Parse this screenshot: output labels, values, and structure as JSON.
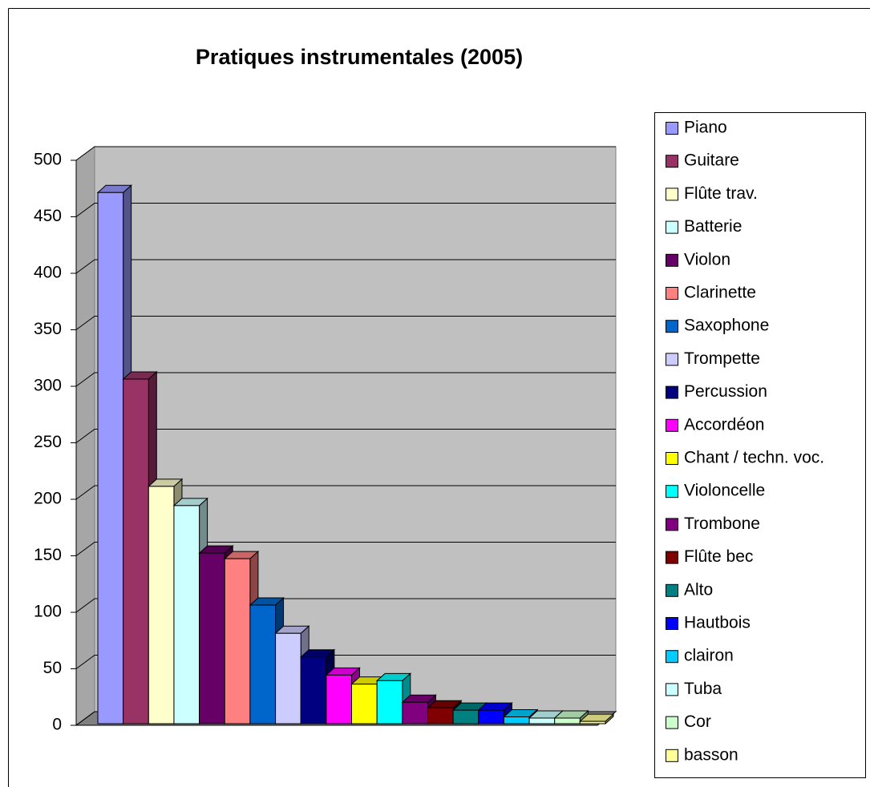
{
  "chart_data": {
    "type": "bar3d",
    "title": "Pratiques instrumentales (2005)",
    "categories": [
      "Piano",
      "Guitare",
      "Flûte trav.",
      "Batterie",
      "Violon",
      "Clarinette",
      "Saxophone",
      "Trompette",
      "Percussion",
      "Accordéon",
      "Chant / techn. voc.",
      "Violoncelle",
      "Trombone",
      "Flûte bec",
      "Alto",
      "Hautbois",
      "clairon",
      "Tuba",
      "Cor",
      "basson"
    ],
    "values": [
      470,
      305,
      210,
      193,
      151,
      146,
      105,
      80,
      59,
      43,
      35,
      38,
      19,
      14,
      12,
      12,
      6,
      5,
      5,
      2
    ],
    "colors": [
      "#9999ff",
      "#993366",
      "#ffffcc",
      "#ccffff",
      "#660066",
      "#ff8080",
      "#0066cc",
      "#ccccff",
      "#000080",
      "#ff00ff",
      "#ffff00",
      "#00ffff",
      "#800080",
      "#800000",
      "#008080",
      "#0000ff",
      "#00ccff",
      "#ccffff",
      "#ccffcc",
      "#ffff99"
    ],
    "ylim": [
      0,
      500
    ],
    "yticks": [
      0,
      50,
      100,
      150,
      200,
      250,
      300,
      350,
      400,
      450,
      500
    ],
    "grid": true,
    "legend": "right"
  }
}
